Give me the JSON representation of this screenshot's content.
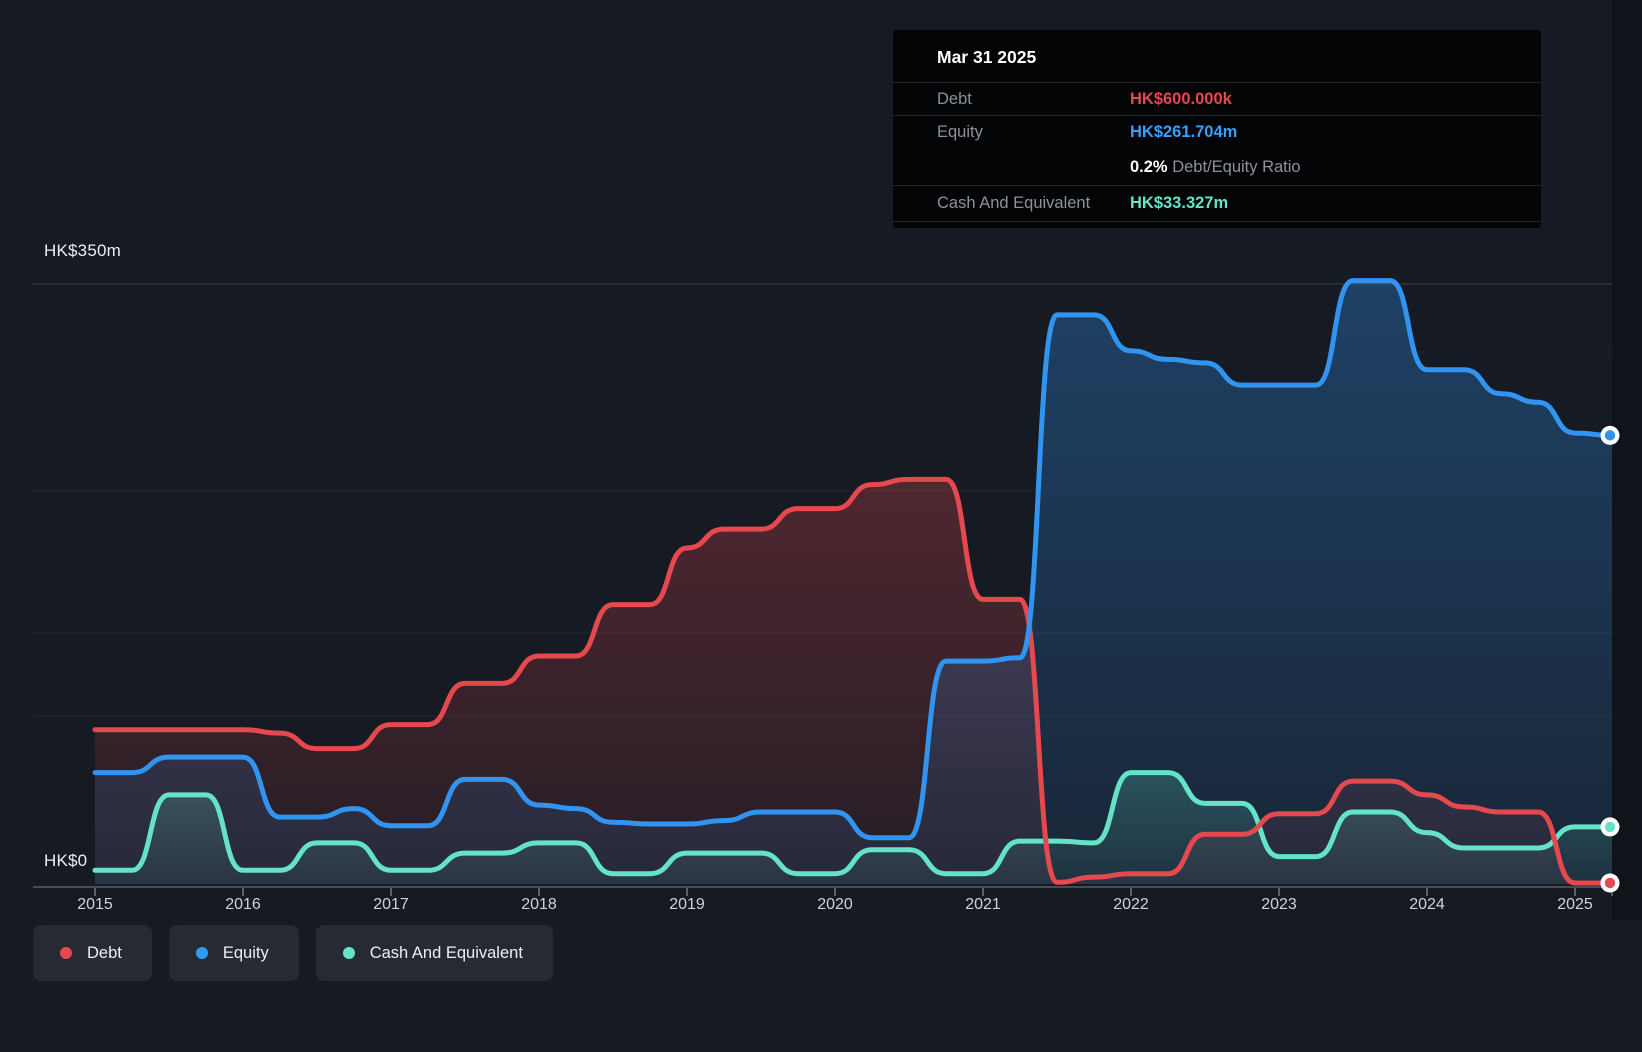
{
  "tooltip": {
    "date": "Mar 31 2025",
    "debt_label": "Debt",
    "debt_value": "HK$600.000k",
    "equity_label": "Equity",
    "equity_value": "HK$261.704m",
    "ratio_value": "0.2%",
    "ratio_label": "Debt/Equity Ratio",
    "cash_label": "Cash And Equivalent",
    "cash_value": "HK$33.327m"
  },
  "y_axis": {
    "top_label": "HK$350m",
    "bottom_label": "HK$0"
  },
  "x_axis": {
    "years": [
      "2015",
      "2016",
      "2017",
      "2018",
      "2019",
      "2020",
      "2021",
      "2022",
      "2023",
      "2024",
      "2025"
    ]
  },
  "legend": {
    "items": [
      {
        "key": "debt",
        "label": "Debt",
        "color": "#e5484d"
      },
      {
        "key": "equity",
        "label": "Equity",
        "color": "#2e9bf5"
      },
      {
        "key": "cash",
        "label": "Cash And Equivalent",
        "color": "#64e3c6"
      }
    ]
  },
  "chart_data": {
    "type": "area",
    "title": "Debt to Equity history",
    "unit": "HK$ millions",
    "x_start": 2015.0,
    "x_step": 0.25,
    "x_end": 2025.25,
    "ylim": [
      0,
      350
    ],
    "grid": "horizontal-faint",
    "legend_position": "bottom-left",
    "series": [
      {
        "key": "debt",
        "name": "Debt",
        "color": "#e5484d",
        "final_label": "HK$600.000k",
        "values": [
          90,
          90,
          90,
          90,
          90,
          88,
          79,
          79,
          93,
          93,
          117,
          117,
          133,
          133,
          163,
          163,
          196,
          207,
          207,
          219,
          219,
          233,
          236,
          236,
          166,
          166,
          1,
          4,
          6,
          6,
          29,
          29,
          41,
          41,
          60,
          60,
          52,
          45,
          42,
          42,
          0.6,
          0.6
        ]
      },
      {
        "key": "equity",
        "name": "Equity",
        "color": "#3094f0",
        "final_label": "HK$261.704m",
        "values": [
          65,
          65,
          74,
          74,
          74,
          39,
          39,
          44,
          34,
          34,
          61,
          61,
          46,
          44,
          36,
          35,
          35,
          37,
          42,
          42,
          42,
          27,
          27,
          130,
          130,
          132,
          332,
          332,
          311,
          306,
          304,
          291,
          291,
          291,
          352,
          352,
          300,
          300,
          286,
          281,
          263,
          261.7
        ]
      },
      {
        "key": "cash",
        "name": "Cash And Equivalent",
        "color": "#64e3c6",
        "final_label": "HK$33.327m",
        "values": [
          8,
          8,
          52,
          52,
          8,
          8,
          24,
          24,
          8,
          8,
          18,
          18,
          24,
          24,
          6,
          6,
          18,
          18,
          18,
          6,
          6,
          20,
          20,
          6,
          6,
          25,
          25,
          24,
          65,
          65,
          47,
          47,
          16,
          16,
          42,
          42,
          30,
          21,
          21,
          21,
          33.3,
          33.3
        ]
      }
    ]
  }
}
